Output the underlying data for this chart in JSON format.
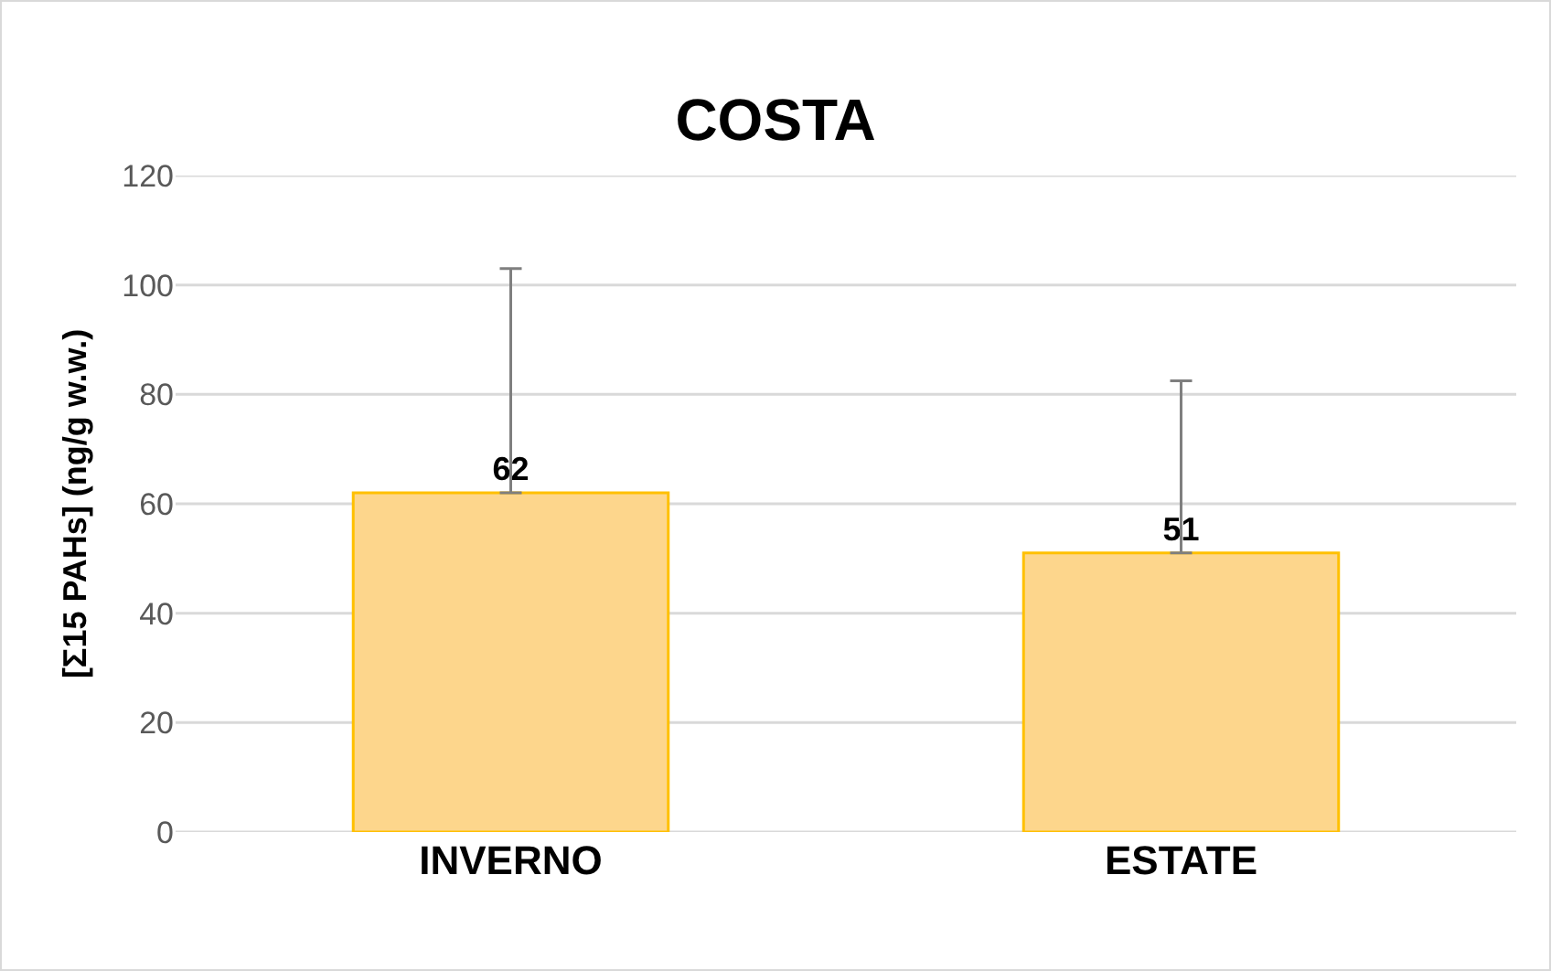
{
  "chart_data": {
    "type": "bar",
    "title": "COSTA",
    "ylabel": "[Σ15 PAHs] (ng/g w.w.)",
    "categories": [
      "INVERNO",
      "ESTATE"
    ],
    "values": [
      62,
      51
    ],
    "color": "#fdd68c",
    "errors": [
      [
        62,
        103
      ],
      [
        51,
        82.5
      ]
    ],
    "ylim": [
      0,
      120
    ],
    "yticks": [
      0,
      20,
      40,
      60,
      80,
      100,
      120
    ],
    "grid": "y",
    "data_labels": true
  }
}
